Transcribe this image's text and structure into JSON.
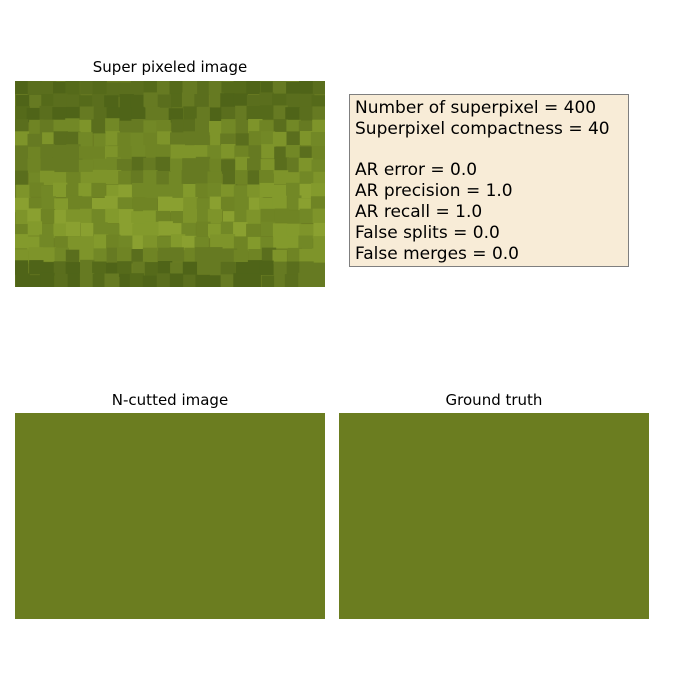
{
  "chart_data": [
    {
      "type": "image",
      "title": "Super pixeled image",
      "base_color": "#6b7d22",
      "palette": [
        "#5a6e1d",
        "#667a22",
        "#728826",
        "#7e942a",
        "#8aa030",
        "#4f6418",
        "#556a1a",
        "#6f8424",
        "#839a2c"
      ]
    },
    {
      "type": "table",
      "title": "",
      "box_face": "#f8ecd7",
      "box_edge": "#7f7f7f",
      "lines": [
        "Number of superpixel = 400",
        "Superpixel compactness = 40",
        "",
        "AR error = 0.0",
        "AR precision = 1.0",
        "AR recall = 1.0",
        "False splits = 0.0",
        "False merges = 0.0"
      ]
    },
    {
      "type": "image",
      "title": "N-cutted image",
      "fill_color": "#6b7d20"
    },
    {
      "type": "image",
      "title": "Ground truth",
      "fill_color": "#6b7d20"
    }
  ]
}
